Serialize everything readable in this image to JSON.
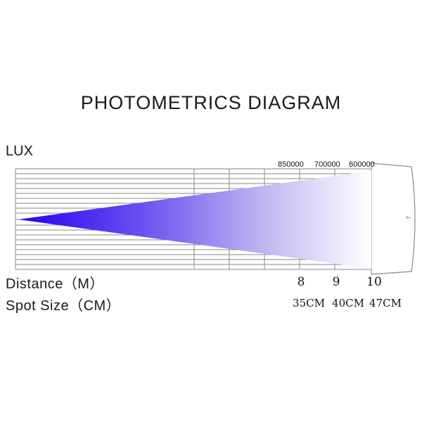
{
  "title": "PHOTOMETRICS DIAGRAM",
  "lux_label": "LUX",
  "distance_label": "Distance（M）",
  "spot_label": "Spot Size（CM）",
  "lux_values": [
    "850000",
    "700000",
    "600000"
  ],
  "distances": [
    "8",
    "9",
    "10"
  ],
  "spot_sizes": [
    "35CM",
    "40CM",
    "47CM"
  ],
  "end_mark": "?",
  "colors": {
    "beam_start": "#2a00f0",
    "beam_end": "#ffffff",
    "grid": "#8a8a8a"
  }
}
